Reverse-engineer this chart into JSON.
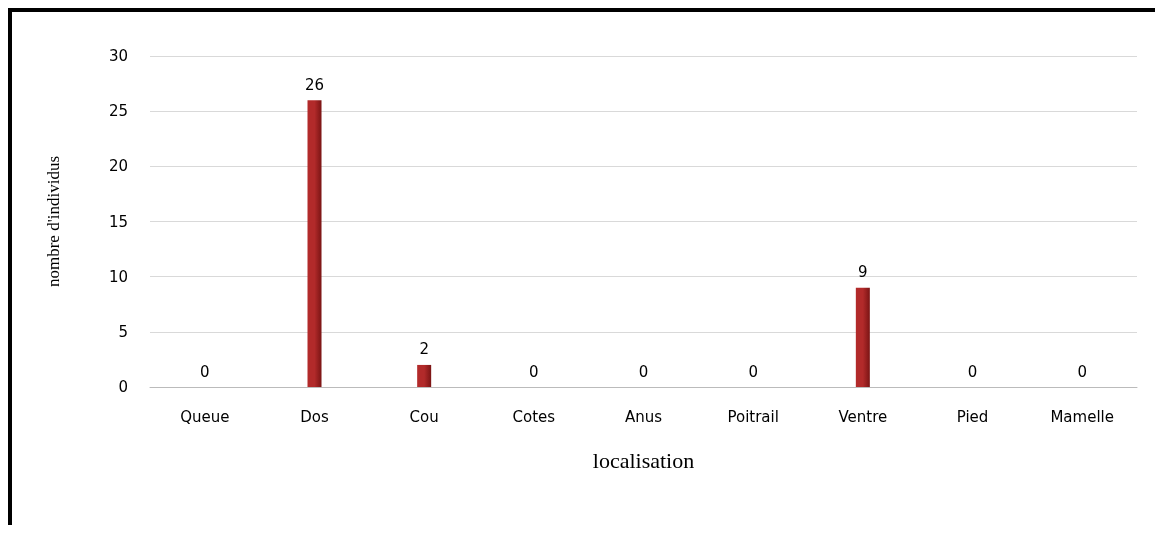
{
  "chart_data": {
    "type": "bar",
    "xlabel": "localisation",
    "ylabel": "nombre d'individus",
    "categories": [
      "Queue",
      "Dos",
      "Cou",
      "Cotes",
      "Anus",
      "Poitrail",
      "Ventre",
      "Pied",
      "Mamelle"
    ],
    "values": [
      0,
      26,
      2,
      0,
      0,
      0,
      9,
      0,
      0
    ],
    "color": "#b22a2a",
    "ylim": [
      0,
      30
    ],
    "yticks": [
      0,
      5,
      10,
      15,
      20,
      25,
      30
    ],
    "grid": "y",
    "data_labels": true
  }
}
